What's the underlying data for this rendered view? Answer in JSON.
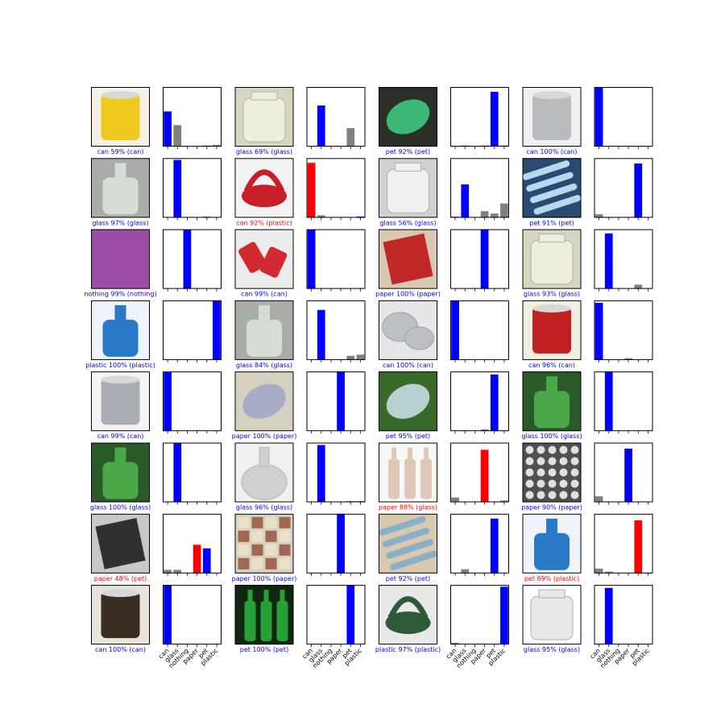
{
  "classes": [
    "can",
    "glass",
    "nothing",
    "paper",
    "pet",
    "plastic"
  ],
  "colors": {
    "correct": "#0000ff",
    "wrong": "#ff0000",
    "other": "#808080",
    "frame": "#000000"
  },
  "chart_data": {
    "type": "bar",
    "layout": "grid of 8 rows x 4 image/prediction pairs",
    "ylim": [
      0,
      1
    ],
    "xtick_labels_shown_on_bottom_row": true,
    "samples": [
      {
        "caption": "can 59% (can)",
        "pred": "can",
        "actual": "can",
        "correct": true,
        "image_icon": "yellow-can-image",
        "probs": [
          0.59,
          0.36,
          0.0,
          0.0,
          0.02,
          0.03
        ]
      },
      {
        "caption": "glass 69% (glass)",
        "pred": "glass",
        "actual": "glass",
        "correct": true,
        "image_icon": "glass-jar-image",
        "probs": [
          0.0,
          0.69,
          0.0,
          0.0,
          0.31,
          0.0
        ]
      },
      {
        "caption": "pet 92% (pet)",
        "pred": "pet",
        "actual": "pet",
        "correct": true,
        "image_icon": "green-bottle-image",
        "probs": [
          0.0,
          0.02,
          0.0,
          0.02,
          0.92,
          0.02
        ]
      },
      {
        "caption": "can 100% (can)",
        "pred": "can",
        "actual": "can",
        "correct": true,
        "image_icon": "metal-can-image",
        "probs": [
          1.0,
          0.0,
          0.0,
          0.0,
          0.0,
          0.0
        ]
      },
      {
        "caption": "glass 97% (glass)",
        "pred": "glass",
        "actual": "glass",
        "correct": true,
        "image_icon": "glass-bottle-image",
        "probs": [
          0.0,
          0.97,
          0.0,
          0.0,
          0.02,
          0.0
        ]
      },
      {
        "caption": "can 92% (plastic)",
        "pred": "can",
        "actual": "plastic",
        "correct": false,
        "image_icon": "red-lid-image",
        "probs": [
          0.92,
          0.04,
          0.0,
          0.0,
          0.0,
          0.02
        ]
      },
      {
        "caption": "glass 56% (glass)",
        "pred": "glass",
        "actual": "glass",
        "correct": true,
        "image_icon": "glass-vase-image",
        "probs": [
          0.02,
          0.56,
          0.0,
          0.11,
          0.07,
          0.24
        ]
      },
      {
        "caption": "pet 91% (pet)",
        "pred": "pet",
        "actual": "pet",
        "correct": true,
        "image_icon": "plastic-bottles-image",
        "probs": [
          0.06,
          0.01,
          0.0,
          0.0,
          0.91,
          0.0
        ]
      },
      {
        "caption": "nothing 99% (nothing)",
        "pred": "nothing",
        "actual": "nothing",
        "correct": true,
        "image_icon": "purple-background-image",
        "probs": [
          0.0,
          0.0,
          0.99,
          0.01,
          0.0,
          0.0
        ]
      },
      {
        "caption": "can 99% (can)",
        "pred": "can",
        "actual": "can",
        "correct": true,
        "image_icon": "crushed-cans-image",
        "probs": [
          0.99,
          0.0,
          0.0,
          0.0,
          0.0,
          0.01
        ]
      },
      {
        "caption": "paper 100% (paper)",
        "pred": "paper",
        "actual": "paper",
        "correct": true,
        "image_icon": "paper-box-image",
        "probs": [
          0.0,
          0.0,
          0.0,
          1.0,
          0.0,
          0.0
        ]
      },
      {
        "caption": "glass 93% (glass)",
        "pred": "glass",
        "actual": "glass",
        "correct": true,
        "image_icon": "glass-jar-image",
        "probs": [
          0.0,
          0.93,
          0.0,
          0.0,
          0.07,
          0.01
        ]
      },
      {
        "caption": "plastic 100% (plastic)",
        "pred": "plastic",
        "actual": "plastic",
        "correct": true,
        "image_icon": "detergent-bottle-image",
        "probs": [
          0.0,
          0.0,
          0.0,
          0.0,
          0.0,
          1.0
        ]
      },
      {
        "caption": "glass 84% (glass)",
        "pred": "glass",
        "actual": "glass",
        "correct": true,
        "image_icon": "glass-bottle-image",
        "probs": [
          0.0,
          0.84,
          0.0,
          0.0,
          0.07,
          0.09
        ]
      },
      {
        "caption": "can 100% (can)",
        "pred": "can",
        "actual": "can",
        "correct": true,
        "image_icon": "metal-tins-image",
        "probs": [
          1.0,
          0.0,
          0.0,
          0.0,
          0.0,
          0.0
        ]
      },
      {
        "caption": "can 96% (can)",
        "pred": "can",
        "actual": "can",
        "correct": true,
        "image_icon": "printed-can-image",
        "probs": [
          0.96,
          0.0,
          0.0,
          0.03,
          0.0,
          0.01
        ]
      },
      {
        "caption": "can 99% (can)",
        "pred": "can",
        "actual": "can",
        "correct": true,
        "image_icon": "silver-can-image",
        "probs": [
          0.99,
          0.0,
          0.0,
          0.0,
          0.0,
          0.01
        ]
      },
      {
        "caption": "paper 100% (paper)",
        "pred": "paper",
        "actual": "paper",
        "correct": true,
        "image_icon": "crumpled-paper-image",
        "probs": [
          0.0,
          0.0,
          0.0,
          1.0,
          0.0,
          0.0
        ]
      },
      {
        "caption": "pet 95% (pet)",
        "pred": "pet",
        "actual": "pet",
        "correct": true,
        "image_icon": "plastic-bottle-grass-image",
        "probs": [
          0.0,
          0.01,
          0.0,
          0.03,
          0.95,
          0.01
        ]
      },
      {
        "caption": "glass 100% (glass)",
        "pred": "glass",
        "actual": "glass",
        "correct": true,
        "image_icon": "green-glass-bottle-image",
        "probs": [
          0.0,
          1.0,
          0.0,
          0.0,
          0.0,
          0.0
        ]
      },
      {
        "caption": "glass 100% (glass)",
        "pred": "glass",
        "actual": "glass",
        "correct": true,
        "image_icon": "green-glass-bottle-image",
        "probs": [
          0.0,
          1.0,
          0.0,
          0.0,
          0.0,
          0.0
        ]
      },
      {
        "caption": "glass 96% (glass)",
        "pred": "glass",
        "actual": "glass",
        "correct": true,
        "image_icon": "glass-flask-image",
        "probs": [
          0.0,
          0.96,
          0.0,
          0.0,
          0.02,
          0.02
        ]
      },
      {
        "caption": "paper 88% (glass)",
        "pred": "paper",
        "actual": "glass",
        "correct": false,
        "image_icon": "bottles-drawing-image",
        "probs": [
          0.08,
          0.0,
          0.0,
          0.88,
          0.0,
          0.03
        ]
      },
      {
        "caption": "paper 90% (paper)",
        "pred": "paper",
        "actual": "paper",
        "correct": true,
        "image_icon": "pebbles-image",
        "probs": [
          0.1,
          0.0,
          0.0,
          0.9,
          0.0,
          0.0
        ]
      },
      {
        "caption": "paper 48% (pet)",
        "pred": "paper",
        "actual": "pet",
        "correct": false,
        "image_icon": "dark-packaging-image",
        "probs": [
          0.06,
          0.06,
          0.0,
          0.48,
          0.42,
          0.0
        ]
      },
      {
        "caption": "paper 100% (paper)",
        "pred": "paper",
        "actual": "paper",
        "correct": true,
        "image_icon": "flyer-image",
        "probs": [
          0.0,
          0.0,
          0.0,
          1.0,
          0.0,
          0.0
        ]
      },
      {
        "caption": "pet 92% (pet)",
        "pred": "pet",
        "actual": "pet",
        "correct": true,
        "image_icon": "plastic-bag-image",
        "probs": [
          0.0,
          0.07,
          0.0,
          0.0,
          0.92,
          0.0
        ]
      },
      {
        "caption": "pet 89% (plastic)",
        "pred": "pet",
        "actual": "plastic",
        "correct": false,
        "image_icon": "detergent-bottle-image",
        "probs": [
          0.08,
          0.03,
          0.0,
          0.0,
          0.89,
          0.01
        ]
      },
      {
        "caption": "can 100% (can)",
        "pred": "can",
        "actual": "can",
        "correct": true,
        "image_icon": "dark-can-image",
        "probs": [
          1.0,
          0.0,
          0.0,
          0.0,
          0.0,
          0.0
        ]
      },
      {
        "caption": "pet 100% (pet)",
        "pred": "pet",
        "actual": "pet",
        "correct": true,
        "image_icon": "green-soda-bottles-image",
        "probs": [
          0.0,
          0.0,
          0.0,
          0.0,
          1.0,
          0.0
        ]
      },
      {
        "caption": "plastic 97% (plastic)",
        "pred": "plastic",
        "actual": "plastic",
        "correct": true,
        "image_icon": "green-lid-image",
        "probs": [
          0.03,
          0.0,
          0.0,
          0.0,
          0.0,
          0.97
        ]
      },
      {
        "caption": "glass 95% (glass)",
        "pred": "glass",
        "actual": "glass",
        "correct": true,
        "image_icon": "empty-glass-jar-image",
        "probs": [
          0.0,
          0.95,
          0.0,
          0.0,
          0.01,
          0.0
        ]
      }
    ]
  },
  "thumbnails": {
    "yellow-can-image": {
      "bg": "#f4f0e4",
      "fg": "#f0c81e",
      "shape": "can"
    },
    "glass-jar-image": {
      "bg": "#d8d6c0",
      "fg": "#eeeedd",
      "shape": "jar"
    },
    "green-bottle-image": {
      "bg": "#2a3028",
      "fg": "#3cb878",
      "shape": "blob"
    },
    "metal-can-image": {
      "bg": "#f0f0f0",
      "fg": "#b8bcc0",
      "shape": "can"
    },
    "glass-bottle-image": {
      "bg": "#a8ada8",
      "fg": "#d6dcd6",
      "shape": "bottle"
    },
    "red-lid-image": {
      "bg": "#f2f2f2",
      "fg": "#c81e28",
      "shape": "ring"
    },
    "glass-vase-image": {
      "bg": "#d0d0d0",
      "fg": "#f0f0f0",
      "shape": "jar"
    },
    "plastic-bottles-image": {
      "bg": "#2a4a70",
      "fg": "#b8d8f0",
      "shape": "stripes"
    },
    "purple-background-image": {
      "bg": "#9c4ea4",
      "fg": "#9c4ea4",
      "shape": "none"
    },
    "crushed-cans-image": {
      "bg": "#ececec",
      "fg": "#d22a32",
      "shape": "cans"
    },
    "paper-box-image": {
      "bg": "#d8c8b0",
      "fg": "#c02828",
      "shape": "box"
    },
    "glass-jar-image-2": {
      "bg": "#c0c0c0",
      "fg": "#e6e6e6",
      "shape": "jar"
    },
    "detergent-bottle-image": {
      "bg": "#eef4fa",
      "fg": "#2a78c8",
      "shape": "bottle"
    },
    "metal-tins-image": {
      "bg": "#e4e6e8",
      "fg": "#bcc0c4",
      "shape": "tins"
    },
    "printed-can-image": {
      "bg": "#f2efe0",
      "fg": "#c02020",
      "shape": "can"
    },
    "silver-can-image": {
      "bg": "#f4f4f4",
      "fg": "#a8aeb4",
      "shape": "can"
    },
    "crumpled-paper-image": {
      "bg": "#d6d0c0",
      "fg": "#a8acc8",
      "shape": "blob"
    },
    "plastic-bottle-grass-image": {
      "bg": "#3a6a2a",
      "fg": "#b8d0d0",
      "shape": "blob"
    },
    "green-glass-bottle-image": {
      "bg": "#2a5a2a",
      "fg": "#4aa848",
      "shape": "bottle"
    },
    "glass-flask-image": {
      "bg": "#f0f0f0",
      "fg": "#d0d0d0",
      "shape": "flask"
    },
    "bottles-drawing-image": {
      "bg": "#f8f8f4",
      "fg": "#e0c8b8",
      "shape": "bottles"
    },
    "pebbles-image": {
      "bg": "#505050",
      "fg": "#e0e0e0",
      "shape": "dots"
    },
    "dark-packaging-image": {
      "bg": "#c8c8c8",
      "fg": "#303030",
      "shape": "box"
    },
    "flyer-image": {
      "bg": "#d8d0c0",
      "fg": "#a06850",
      "shape": "grid"
    },
    "plastic-bag-image": {
      "bg": "#d8c8b0",
      "fg": "#8ab0c8",
      "shape": "stripes"
    },
    "dark-can-image": {
      "bg": "#e8e4dc",
      "fg": "#3a2e22",
      "shape": "can"
    },
    "green-soda-bottles-image": {
      "bg": "#102810",
      "fg": "#28a038",
      "shape": "bottles"
    },
    "green-lid-image": {
      "bg": "#e8e8e8",
      "fg": "#2e5a3a",
      "shape": "ring"
    },
    "empty-glass-jar-image": {
      "bg": "#ffffff",
      "fg": "#e8e8e8",
      "shape": "jar"
    }
  }
}
